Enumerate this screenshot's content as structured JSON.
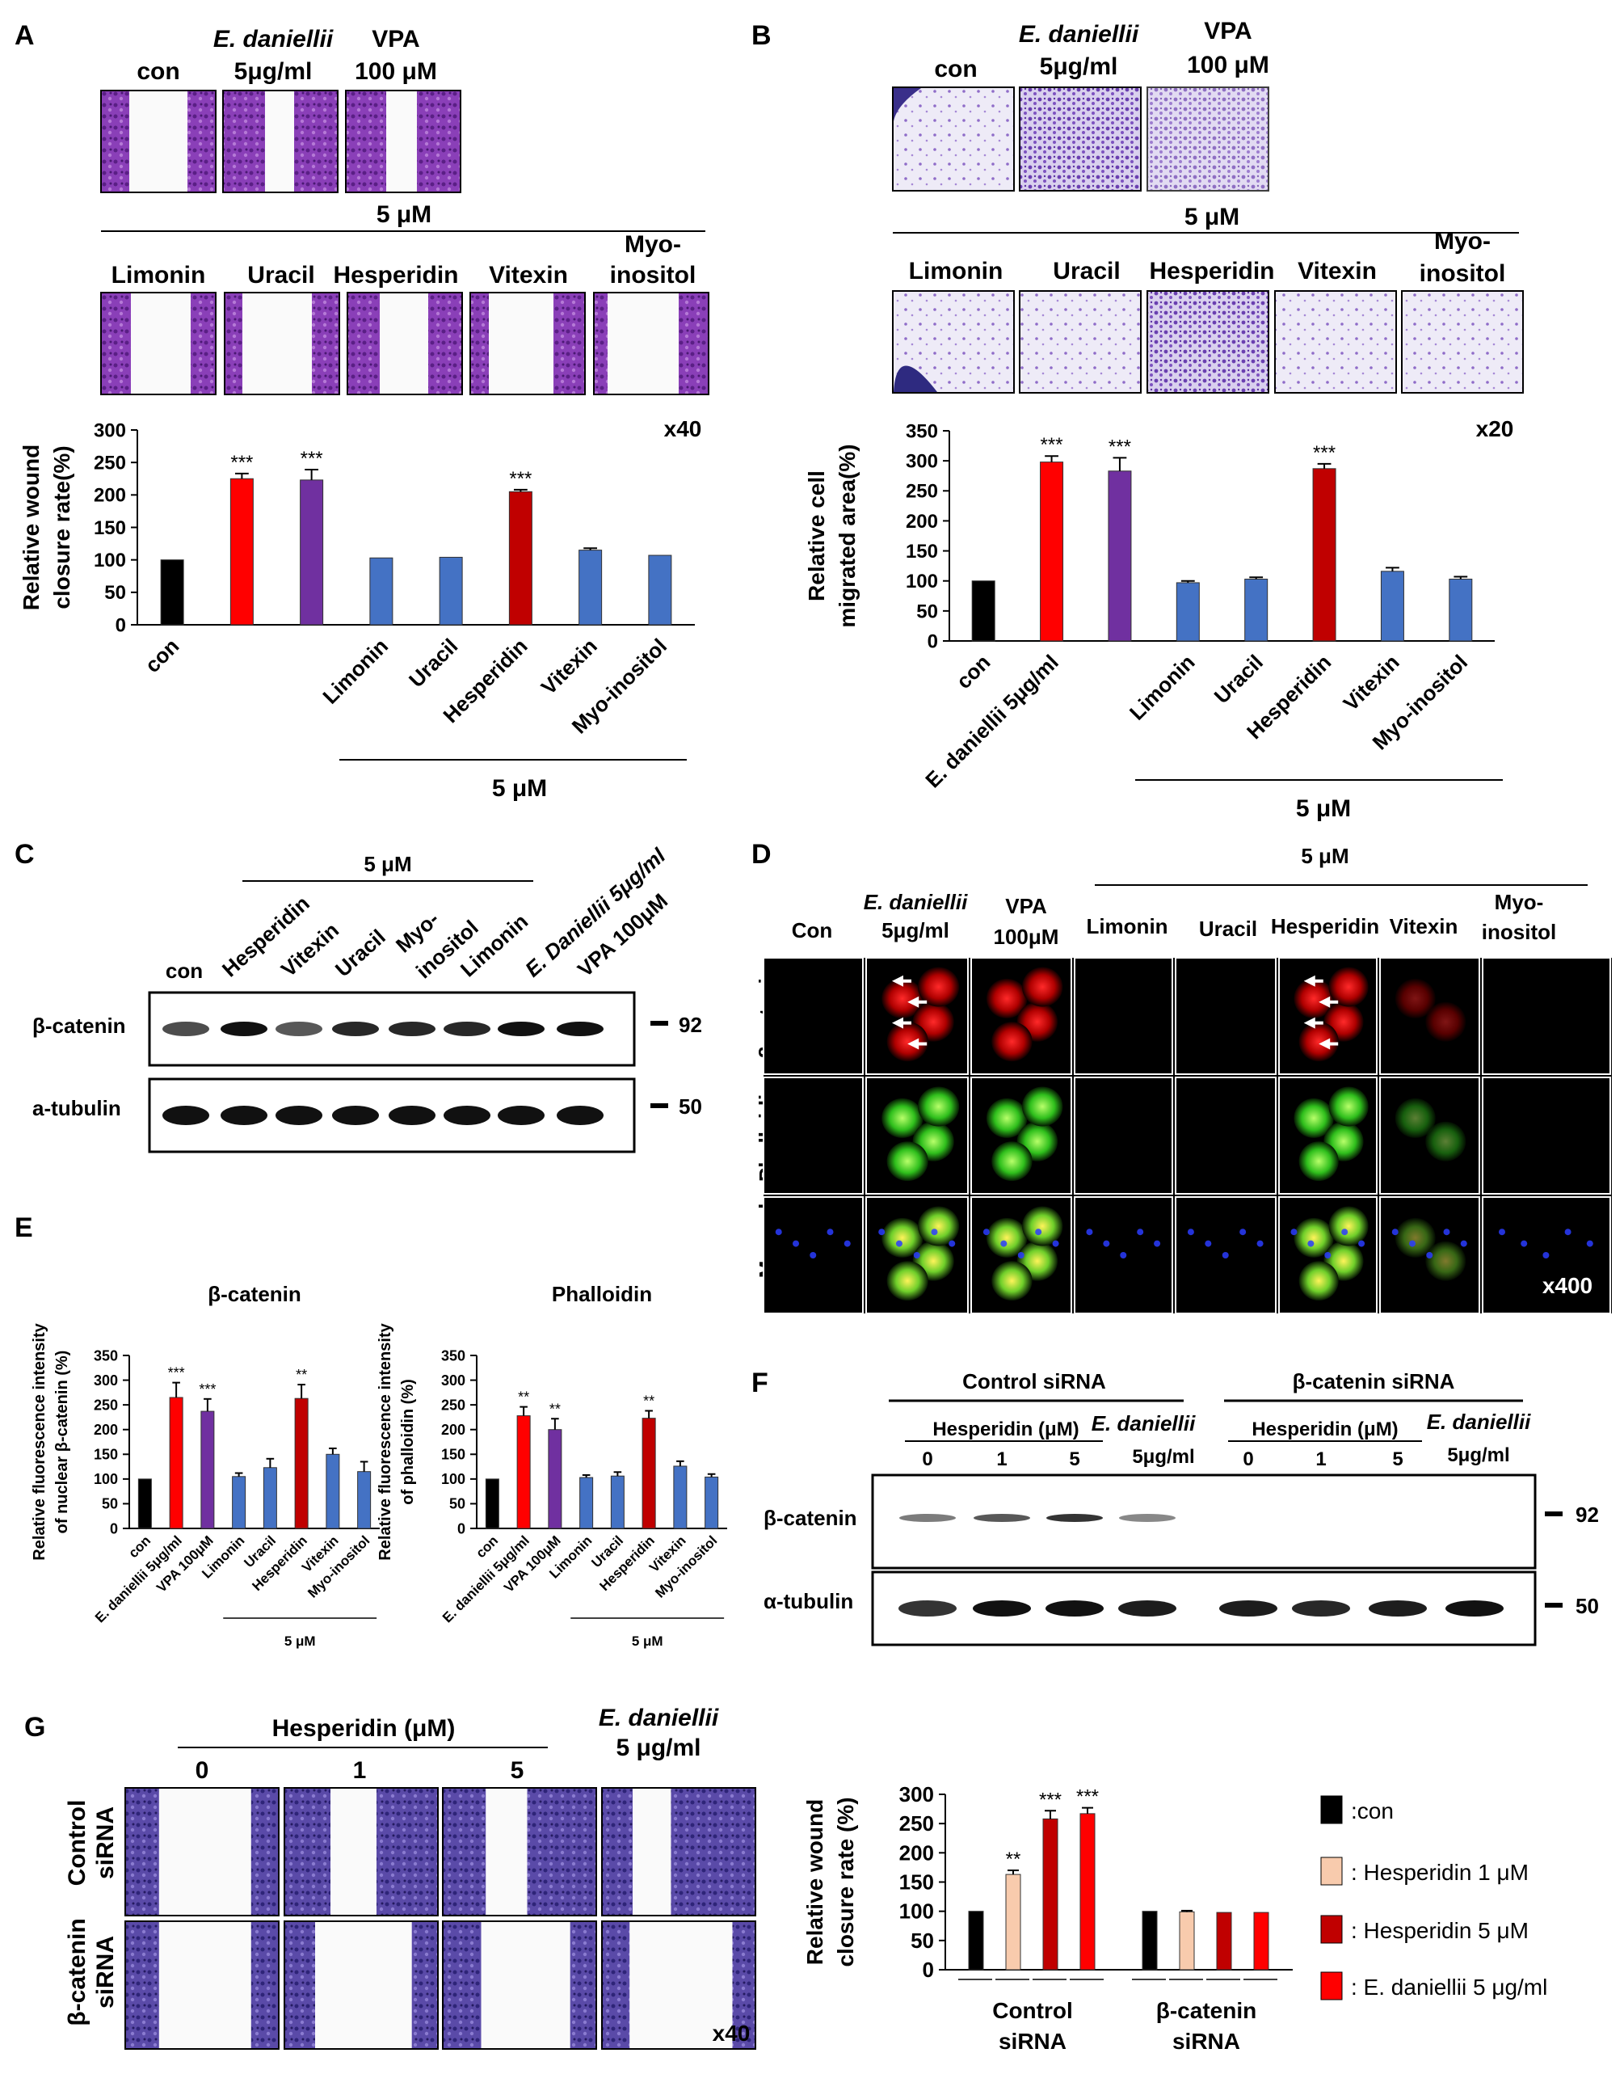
{
  "colors": {
    "black": "#000000",
    "red": "#ff0000",
    "purple": "#7030a0",
    "blue": "#4472c4",
    "dark_red": "#c00000",
    "peach": "#f8cbad",
    "micrograph_purple": "#7a35a8",
    "transwell_bg": "#ece8f5"
  },
  "panel_letters": [
    "A",
    "B",
    "C",
    "D",
    "E",
    "F",
    "G"
  ],
  "panel_a": {
    "top_labels": [
      "con",
      "E. daniellii",
      "5μg/ml",
      "VPA",
      "100 μM"
    ],
    "conc_label": "5 μM",
    "compound_labels": [
      "Limonin",
      "Uracil",
      "Hesperidin",
      "Vitexin",
      "Myo-",
      "inositol"
    ],
    "magnification": "x40",
    "conc_bracket_label": "5 μM"
  },
  "panel_b": {
    "top_labels": [
      "con",
      "E. daniellii",
      "5μg/ml",
      "VPA",
      "100 μM"
    ],
    "conc_label": "5 μM",
    "compound_labels": [
      "Limonin",
      "Uracil",
      "Hesperidin",
      "Vitexin",
      "Myo-",
      "inositol"
    ],
    "magnification": "x20",
    "conc_bracket_label": "5 μM"
  },
  "panel_c": {
    "conc_label": "5 μM",
    "lanes": [
      "con",
      "Hesperidin",
      "Vitexin",
      "Uracil",
      "Myo-",
      "inositol",
      "Limonin",
      "E. Daniellii 5μg/ml",
      "VPA 100μM"
    ],
    "rows": [
      "β-catenin",
      "a-tubulin"
    ],
    "markers": [
      "92",
      "50"
    ]
  },
  "panel_d": {
    "conc_label": "5 μM",
    "columns": [
      "Con",
      "E. daniellii",
      "5μg/ml",
      "VPA",
      "100μM",
      "Limonin",
      "Uracil",
      "Hesperidin",
      "Vitexin",
      "Myo-",
      "inositol"
    ],
    "rows": [
      "β-catenin",
      "Phalloidin",
      "Merged"
    ],
    "magnification": "x400"
  },
  "panel_f": {
    "group1": "Control siRNA",
    "group2": "β-catenin siRNA",
    "hesp_label": "Hesperidin (μM)",
    "doses": [
      "0",
      "1",
      "5",
      "0",
      "1",
      "5"
    ],
    "ed_label": [
      "E. daniellii",
      "5μg/ml"
    ],
    "rows": [
      "β-catenin",
      "α-tubulin"
    ],
    "markers": [
      "92",
      "50"
    ]
  },
  "panel_g": {
    "hesp_label": "Hesperidin (μM)",
    "doses": [
      "0",
      "1",
      "5"
    ],
    "ed_label": [
      "E. daniellii",
      "5 μg/ml"
    ],
    "row_labels": [
      [
        "Control",
        "siRNA"
      ],
      [
        "β-catenin",
        "siRNA"
      ]
    ],
    "magnification": "x40",
    "legend": [
      ":con",
      ": Hesperidin 1 μM",
      ": Hesperidin 5 μM",
      ": E. daniellii 5 μg/ml"
    ]
  },
  "chart_data": [
    {
      "id": "A",
      "type": "bar",
      "categories": [
        "con",
        "",
        "",
        "Limonin",
        "Uracil",
        "Hesperidin",
        "Vitexin",
        "Myo-inositol"
      ],
      "values": [
        100,
        225,
        223,
        103,
        104,
        205,
        115,
        107
      ],
      "errors": [
        0,
        8,
        16,
        0,
        0,
        3,
        3,
        0
      ],
      "significance": [
        "",
        "***",
        "***",
        "",
        "",
        "***",
        "",
        ""
      ],
      "ylabel": [
        "Relative wound",
        "closure rate(%)"
      ],
      "ylim": [
        0,
        300
      ],
      "yticks": [
        0,
        50,
        100,
        150,
        200,
        250,
        300
      ]
    },
    {
      "id": "B",
      "type": "bar",
      "categories": [
        "con",
        "E. daniellii 5μg/ml",
        "",
        "Limonin",
        "Uracil",
        "Hesperidin",
        "Vitexin",
        "Myo-inositol"
      ],
      "values": [
        100,
        298,
        283,
        97,
        103,
        287,
        116,
        103
      ],
      "errors": [
        0,
        10,
        22,
        3,
        3,
        8,
        6,
        4
      ],
      "significance": [
        "",
        "***",
        "***",
        "",
        "",
        "***",
        "",
        ""
      ],
      "ylabel": [
        "Relative cell",
        "migrated area(%)"
      ],
      "ylim": [
        0,
        350
      ],
      "yticks": [
        0,
        50,
        100,
        150,
        200,
        250,
        300,
        350
      ]
    },
    {
      "id": "E1",
      "type": "bar",
      "title": "β-catenin",
      "categories": [
        "con",
        "E. daniellii 5μg/ml",
        "VPA 100μM",
        "Limonin",
        "Uracil",
        "Hesperidin",
        "Vitexin",
        "Myo-inositol"
      ],
      "values": [
        100,
        265,
        237,
        105,
        123,
        263,
        150,
        115
      ],
      "errors": [
        0,
        30,
        25,
        7,
        18,
        28,
        12,
        20
      ],
      "significance": [
        "",
        "***",
        "***",
        "",
        "",
        "**",
        "",
        ""
      ],
      "ylabel": [
        "Relative fluorescence intensity",
        "of nuclear β-catenin (%)"
      ],
      "ylim": [
        0,
        350
      ],
      "yticks": [
        0,
        50,
        100,
        150,
        200,
        250,
        300,
        350
      ],
      "bracket_label": "5 μM"
    },
    {
      "id": "E2",
      "type": "bar",
      "title": "Phalloidin",
      "categories": [
        "con",
        "E. daniellii 5μg/ml",
        "VPA 100μM",
        "Limonin",
        "Uracil",
        "Hesperidin",
        "Vitexin",
        "Myo-inositol"
      ],
      "values": [
        100,
        228,
        200,
        103,
        106,
        223,
        126,
        104
      ],
      "errors": [
        0,
        18,
        22,
        5,
        8,
        15,
        10,
        6
      ],
      "significance": [
        "",
        "**",
        "**",
        "",
        "",
        "**",
        "",
        ""
      ],
      "ylabel": [
        "Relative fluorescence intensity",
        "of phalloidin (%)"
      ],
      "ylim": [
        0,
        350
      ],
      "yticks": [
        0,
        50,
        100,
        150,
        200,
        250,
        300,
        350
      ],
      "bracket_label": "5 μM"
    },
    {
      "id": "G",
      "type": "bar",
      "categories": [
        "Control siRNA",
        "β-catenin siRNA"
      ],
      "series": [
        {
          "values": [
            100,
            100
          ]
        },
        {
          "values": [
            163,
            99
          ]
        },
        {
          "values": [
            258,
            98
          ]
        },
        {
          "values": [
            267,
            98
          ]
        }
      ],
      "errors": [
        [
          0,
          0
        ],
        [
          7,
          2
        ],
        [
          14,
          0
        ],
        [
          10,
          0
        ]
      ],
      "significance": [
        [
          "",
          ""
        ],
        [
          "**",
          ""
        ],
        [
          "***",
          ""
        ],
        [
          "***",
          ""
        ]
      ],
      "ylabel": [
        "Relative wound",
        "closure rate (%)"
      ],
      "ylim": [
        0,
        300
      ],
      "yticks": [
        0,
        50,
        100,
        150,
        200,
        250,
        300
      ],
      "group_labels": [
        [
          "Control",
          "siRNA"
        ],
        [
          "β-catenin",
          "siRNA"
        ]
      ]
    }
  ]
}
